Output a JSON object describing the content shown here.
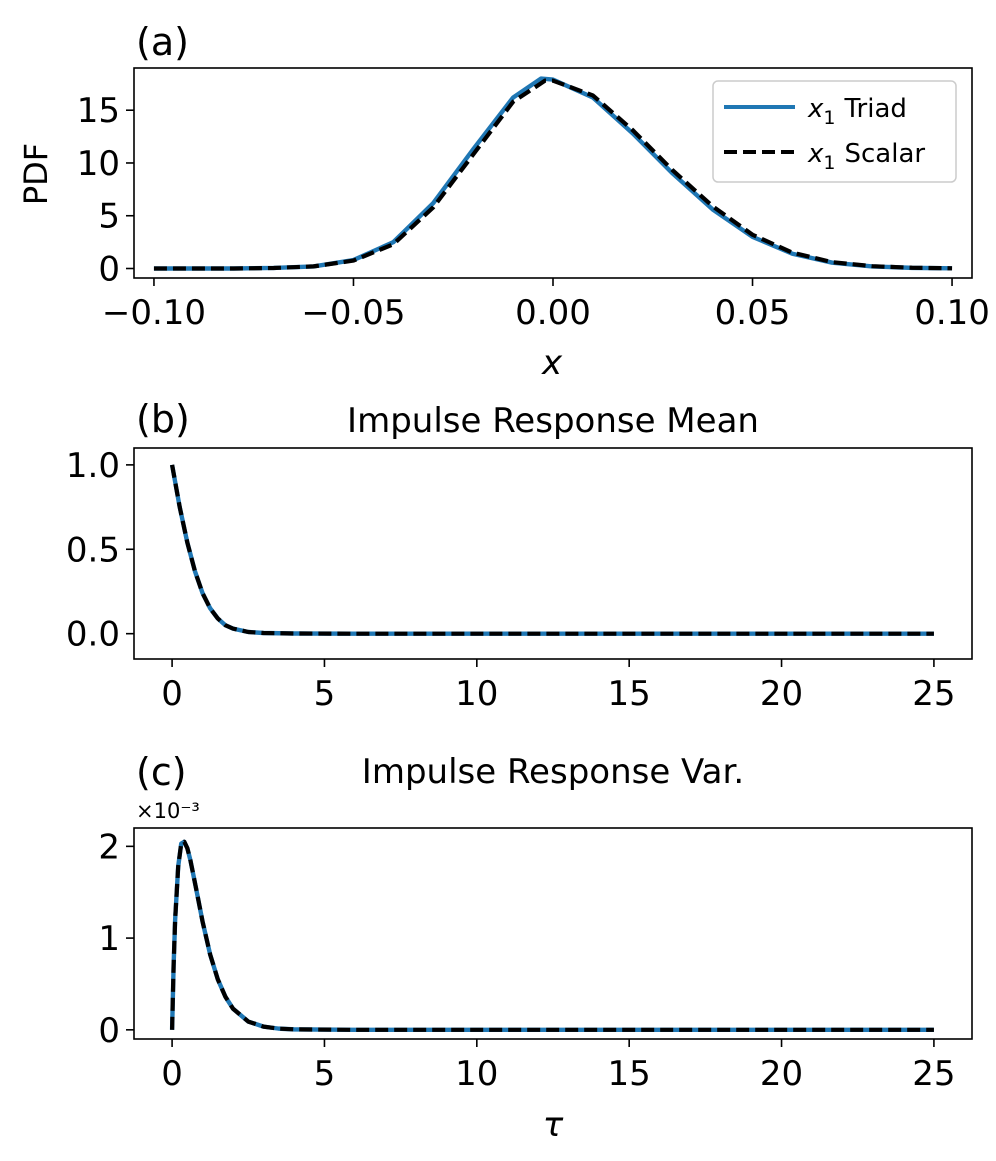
{
  "chart_data": [
    {
      "type": "line",
      "panel_label": "(a)",
      "title": "",
      "xlabel": "x",
      "ylabel": "PDF",
      "xlim": [
        -0.105,
        0.105
      ],
      "ylim": [
        -0.9,
        19.0
      ],
      "xticks": [
        -0.1,
        -0.05,
        0.0,
        0.05,
        0.1
      ],
      "xtick_labels": [
        "−0.10",
        "−0.05",
        "0.00",
        "0.05",
        "0.10"
      ],
      "yticks": [
        0,
        5,
        10,
        15
      ],
      "ytick_labels": [
        "0",
        "5",
        "10",
        "15"
      ],
      "legend": {
        "location": "top-right",
        "entries": [
          {
            "var": "x",
            "sub": "1",
            "label": "Triad",
            "style": "solid",
            "color": "#1f77b4"
          },
          {
            "var": "x",
            "sub": "1",
            "label": "Scalar",
            "style": "dashed",
            "color": "#000000"
          }
        ]
      },
      "series": [
        {
          "name": "x1 Triad",
          "color": "#1f77b4",
          "style": "solid",
          "x": [
            -0.1,
            -0.08,
            -0.07,
            -0.06,
            -0.05,
            -0.04,
            -0.03,
            -0.02,
            -0.01,
            -0.003,
            0.0,
            0.01,
            0.02,
            0.03,
            0.04,
            0.05,
            0.06,
            0.07,
            0.08,
            0.09,
            0.1
          ],
          "y": [
            0.0,
            0.0,
            0.05,
            0.2,
            0.8,
            2.5,
            6.2,
            11.3,
            16.2,
            18.0,
            17.9,
            16.2,
            12.8,
            9.0,
            5.6,
            3.0,
            1.4,
            0.55,
            0.2,
            0.06,
            0.02
          ]
        },
        {
          "name": "x1 Scalar",
          "color": "#000000",
          "style": "dashed",
          "x": [
            -0.1,
            -0.08,
            -0.07,
            -0.06,
            -0.05,
            -0.04,
            -0.03,
            -0.02,
            -0.01,
            -0.002,
            0.0,
            0.01,
            0.02,
            0.03,
            0.04,
            0.05,
            0.06,
            0.07,
            0.08,
            0.09,
            0.1
          ],
          "y": [
            0.0,
            0.0,
            0.05,
            0.2,
            0.75,
            2.3,
            5.8,
            10.8,
            15.8,
            17.8,
            17.8,
            16.4,
            13.1,
            9.3,
            5.9,
            3.2,
            1.5,
            0.6,
            0.22,
            0.07,
            0.02
          ]
        }
      ]
    },
    {
      "type": "line",
      "panel_label": "(b)",
      "title": "Impulse Response Mean",
      "xlabel": "",
      "ylabel": "",
      "xlim": [
        -1.25,
        26.25
      ],
      "ylim": [
        -0.15,
        1.1
      ],
      "xticks": [
        0,
        5,
        10,
        15,
        20,
        25
      ],
      "xtick_labels": [
        "0",
        "5",
        "10",
        "15",
        "20",
        "25"
      ],
      "yticks": [
        0.0,
        0.5,
        1.0
      ],
      "ytick_labels": [
        "0.0",
        "0.5",
        "1.0"
      ],
      "series": [
        {
          "name": "x1 Triad",
          "color": "#1f77b4",
          "style": "solid",
          "x": [
            0,
            0.25,
            0.5,
            0.75,
            1.0,
            1.25,
            1.5,
            1.75,
            2.0,
            2.5,
            3.0,
            4.0,
            6.0,
            10.0,
            15.0,
            20.0,
            25.0
          ],
          "y": [
            1.0,
            0.75,
            0.54,
            0.37,
            0.24,
            0.15,
            0.09,
            0.05,
            0.03,
            0.01,
            0.004,
            0.001,
            0.0,
            0.0,
            0.0,
            0.0,
            0.0
          ]
        },
        {
          "name": "x1 Scalar",
          "color": "#000000",
          "style": "dashed",
          "x": [
            0,
            0.25,
            0.5,
            0.75,
            1.0,
            1.25,
            1.5,
            1.75,
            2.0,
            2.5,
            3.0,
            4.0,
            6.0,
            10.0,
            15.0,
            20.0,
            25.0
          ],
          "y": [
            1.0,
            0.75,
            0.54,
            0.37,
            0.24,
            0.15,
            0.09,
            0.05,
            0.03,
            0.01,
            0.004,
            0.001,
            0.0,
            0.0,
            0.0,
            0.0,
            0.0
          ]
        }
      ]
    },
    {
      "type": "line",
      "panel_label": "(c)",
      "title": "Impulse Response Var.",
      "xlabel": "τ",
      "ylabel": "",
      "offset_text": "×10⁻³",
      "xlim": [
        -1.25,
        26.25
      ],
      "ylim": [
        -0.1,
        2.2
      ],
      "xticks": [
        0,
        5,
        10,
        15,
        20,
        25
      ],
      "xtick_labels": [
        "0",
        "5",
        "10",
        "15",
        "20",
        "25"
      ],
      "yticks": [
        0,
        1,
        2
      ],
      "ytick_labels": [
        "0",
        "1",
        "2"
      ],
      "series": [
        {
          "name": "x1 Triad",
          "color": "#1f77b4",
          "style": "solid",
          "x": [
            0,
            0.05,
            0.1,
            0.2,
            0.3,
            0.4,
            0.5,
            0.6,
            0.8,
            1.0,
            1.25,
            1.5,
            1.75,
            2.0,
            2.5,
            3.0,
            3.5,
            4.0,
            6.0,
            10.0,
            15.0,
            20.0,
            25.0
          ],
          "y": [
            0.0,
            0.7,
            1.2,
            1.78,
            2.03,
            2.05,
            1.98,
            1.85,
            1.52,
            1.18,
            0.82,
            0.55,
            0.36,
            0.23,
            0.09,
            0.035,
            0.013,
            0.005,
            0.0,
            0.0,
            0.0,
            0.0,
            0.0
          ]
        },
        {
          "name": "x1 Scalar",
          "color": "#000000",
          "style": "dashed",
          "x": [
            0,
            0.05,
            0.1,
            0.2,
            0.3,
            0.4,
            0.5,
            0.6,
            0.8,
            1.0,
            1.25,
            1.5,
            1.75,
            2.0,
            2.5,
            3.0,
            3.5,
            4.0,
            6.0,
            10.0,
            15.0,
            20.0,
            25.0
          ],
          "y": [
            0.0,
            0.7,
            1.2,
            1.78,
            2.03,
            2.05,
            1.98,
            1.85,
            1.52,
            1.18,
            0.82,
            0.55,
            0.36,
            0.23,
            0.09,
            0.035,
            0.013,
            0.005,
            0.0,
            0.0,
            0.0,
            0.0,
            0.0
          ]
        }
      ]
    }
  ]
}
